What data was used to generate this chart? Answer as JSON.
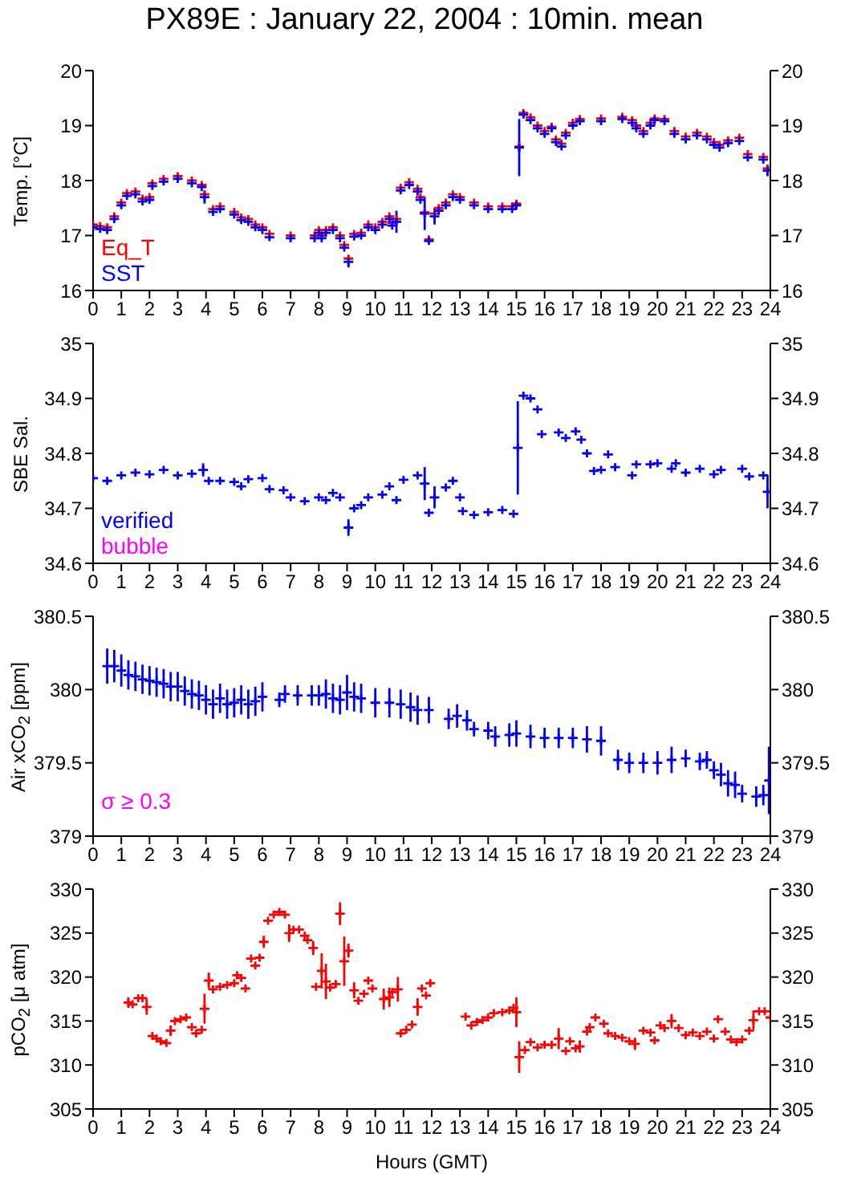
{
  "chart_data": [
    {
      "type": "scatter",
      "title": "PX89E : January 22, 2004 : 10min. mean",
      "ylabel": "Temp. [°C]",
      "marker": "cross",
      "legend": "bottom left",
      "xlim": [
        0,
        24
      ],
      "xticks": [
        0,
        1,
        2,
        3,
        4,
        5,
        6,
        7,
        8,
        9,
        10,
        11,
        12,
        13,
        14,
        15,
        16,
        17,
        18,
        19,
        20,
        21,
        22,
        23,
        24
      ],
      "ylim": [
        16,
        20
      ],
      "yticks": [
        16,
        17,
        18,
        19,
        20
      ],
      "y2lim": [
        16,
        20
      ],
      "y2ticks": [
        16,
        17,
        18,
        19,
        20
      ],
      "x": [
        0,
        0.25,
        0.5,
        0.75,
        1,
        1.2,
        1.5,
        1.75,
        2,
        2.1,
        2.5,
        3,
        3.5,
        3.85,
        3.95,
        4.25,
        4.5,
        5,
        5.25,
        5.5,
        5.75,
        6,
        6.25,
        7,
        7.85,
        8,
        8.1,
        8.25,
        8.5,
        8.75,
        8.9,
        9.05,
        9.25,
        9.5,
        9.75,
        10,
        10.25,
        10.5,
        10.6,
        10.75,
        10.9,
        11.2,
        11.5,
        11.6,
        11.75,
        11.9,
        12.1,
        12.25,
        12.5,
        12.75,
        13,
        13.5,
        14,
        14.5,
        14.85,
        15,
        15.1,
        15.25,
        15.5,
        15.75,
        16,
        16.25,
        16.4,
        16.6,
        16.75,
        17,
        17.25,
        18,
        18.75,
        19.1,
        19.25,
        19.5,
        19.75,
        19.9,
        20.25,
        20.6,
        21,
        21.4,
        21.75,
        22,
        22.2,
        22.5,
        22.9,
        23.2,
        23.75,
        23.9
      ],
      "series": [
        {
          "name": "Eq_T",
          "color": "#ff0000",
          "values": [
            17.2,
            17.17,
            17.15,
            17.35,
            17.6,
            17.77,
            17.8,
            17.67,
            17.7,
            17.95,
            18.03,
            18.08,
            18.0,
            17.92,
            17.75,
            17.48,
            17.53,
            17.43,
            17.33,
            17.3,
            17.2,
            17.15,
            17.03,
            17.0,
            17.0,
            17.1,
            17.0,
            17.1,
            17.15,
            17.0,
            16.83,
            16.58,
            17.03,
            17.05,
            17.2,
            17.15,
            17.25,
            17.35,
            17.23,
            17.3,
            17.87,
            17.97,
            17.85,
            17.7,
            17.42,
            16.93,
            17.4,
            17.5,
            17.6,
            17.75,
            17.7,
            17.6,
            17.53,
            17.53,
            17.53,
            17.58,
            18.62,
            19.23,
            19.15,
            19.0,
            18.9,
            18.98,
            18.75,
            18.67,
            18.87,
            19.05,
            19.12,
            19.13,
            19.16,
            19.1,
            19.0,
            18.9,
            19.05,
            19.13,
            19.12,
            18.9,
            18.8,
            18.87,
            18.8,
            18.7,
            18.65,
            18.73,
            18.78,
            18.48,
            18.43,
            18.22
          ]
        },
        {
          "name": "SST",
          "color": "#0000ff",
          "values": [
            17.15,
            17.12,
            17.1,
            17.3,
            17.55,
            17.72,
            17.75,
            17.62,
            17.65,
            17.9,
            17.98,
            18.03,
            17.95,
            17.88,
            17.7,
            17.43,
            17.48,
            17.38,
            17.28,
            17.25,
            17.15,
            17.1,
            16.97,
            16.95,
            16.95,
            17.05,
            16.95,
            17.05,
            17.1,
            16.95,
            16.78,
            16.52,
            16.98,
            17.0,
            17.15,
            17.1,
            17.2,
            17.3,
            17.18,
            17.25,
            17.82,
            17.92,
            17.8,
            17.65,
            17.4,
            16.9,
            17.35,
            17.45,
            17.55,
            17.7,
            17.65,
            17.55,
            17.48,
            17.48,
            17.48,
            17.55,
            18.6,
            19.2,
            19.1,
            18.95,
            18.85,
            18.95,
            18.7,
            18.62,
            18.82,
            19.0,
            19.08,
            19.08,
            19.12,
            19.05,
            18.95,
            18.85,
            19.0,
            19.1,
            19.08,
            18.85,
            18.75,
            18.82,
            18.75,
            18.65,
            18.6,
            18.68,
            18.72,
            18.42,
            18.38,
            18.18
          ],
          "errors": [
            null,
            null,
            null,
            null,
            null,
            null,
            null,
            null,
            null,
            null,
            null,
            null,
            null,
            null,
            0.12,
            null,
            null,
            null,
            null,
            null,
            null,
            null,
            null,
            null,
            null,
            null,
            null,
            null,
            null,
            null,
            null,
            0.1,
            null,
            null,
            null,
            null,
            null,
            null,
            null,
            0.2,
            null,
            null,
            null,
            null,
            0.3,
            null,
            0.15,
            null,
            null,
            null,
            null,
            null,
            null,
            null,
            null,
            null,
            0.52,
            null,
            null,
            null,
            null,
            null,
            null,
            null,
            null,
            null,
            null,
            null,
            null,
            null,
            null,
            null,
            null,
            null,
            null,
            null,
            null,
            null,
            null,
            null,
            null,
            null,
            null,
            null,
            null,
            0.1
          ]
        }
      ]
    },
    {
      "type": "scatter",
      "ylabel": "SBE Sal.",
      "marker": "cross",
      "legend": "bottom left",
      "xlim": [
        0,
        24
      ],
      "xticks": [
        0,
        1,
        2,
        3,
        4,
        5,
        6,
        7,
        8,
        9,
        10,
        11,
        12,
        13,
        14,
        15,
        16,
        17,
        18,
        19,
        20,
        21,
        22,
        23,
        24
      ],
      "ylim": [
        34.6,
        35
      ],
      "yticks": [
        34.6,
        34.7,
        34.8,
        34.9,
        35
      ],
      "y2lim": [
        34.6,
        35
      ],
      "y2ticks": [
        34.6,
        34.7,
        34.8,
        34.9,
        35
      ],
      "series": [
        {
          "name": "verified",
          "color": "#0000ff",
          "x": [
            0,
            0.5,
            1,
            1.5,
            2,
            2.5,
            3,
            3.5,
            3.9,
            4.1,
            4.5,
            5,
            5.25,
            5.5,
            6,
            6.25,
            6.75,
            7,
            7.5,
            8,
            8.25,
            8.5,
            8.75,
            9.05,
            9.25,
            9.5,
            9.75,
            10.25,
            10.5,
            10.75,
            11,
            11.5,
            11.75,
            11.9,
            12.1,
            12.5,
            12.75,
            13,
            13.1,
            13.5,
            14,
            14.5,
            14.9,
            15.05,
            15.25,
            15.5,
            15.75,
            15.9,
            16.5,
            16.75,
            17.1,
            17.3,
            17.5,
            17.75,
            18,
            18.25,
            18.5,
            19.1,
            19.25,
            19.75,
            20,
            20.5,
            20.65,
            21,
            21.5,
            22,
            22.25,
            23,
            23.25,
            23.75,
            23.9
          ],
          "values": [
            34.755,
            34.75,
            34.76,
            34.765,
            34.762,
            34.77,
            34.76,
            34.763,
            34.77,
            34.75,
            34.75,
            34.748,
            34.74,
            34.753,
            34.755,
            34.735,
            34.733,
            34.72,
            34.713,
            34.72,
            34.715,
            34.728,
            34.72,
            34.665,
            34.7,
            34.706,
            34.72,
            34.725,
            34.74,
            34.715,
            34.752,
            34.76,
            34.745,
            34.692,
            34.72,
            34.738,
            34.75,
            34.72,
            34.695,
            34.688,
            34.693,
            34.697,
            34.69,
            34.81,
            34.905,
            34.9,
            34.88,
            34.835,
            34.838,
            34.828,
            34.84,
            34.825,
            34.8,
            34.768,
            34.77,
            34.798,
            34.775,
            34.76,
            34.78,
            34.78,
            34.782,
            34.772,
            34.782,
            34.765,
            34.772,
            34.762,
            34.77,
            34.772,
            34.758,
            34.76,
            34.73
          ],
          "errors": [
            null,
            null,
            null,
            null,
            null,
            null,
            null,
            null,
            0.012,
            null,
            null,
            null,
            null,
            null,
            null,
            null,
            null,
            null,
            null,
            null,
            null,
            null,
            null,
            0.015,
            null,
            null,
            null,
            null,
            null,
            null,
            null,
            null,
            0.03,
            null,
            0.02,
            null,
            null,
            null,
            null,
            null,
            null,
            null,
            null,
            0.085,
            null,
            null,
            null,
            null,
            null,
            null,
            null,
            null,
            null,
            null,
            null,
            null,
            null,
            null,
            null,
            null,
            null,
            null,
            null,
            null,
            null,
            null,
            null,
            null,
            null,
            null,
            0.03
          ]
        },
        {
          "name": "bubble",
          "color": "#ff00ff"
        }
      ]
    },
    {
      "type": "scatter",
      "ylabel": "Air xCO$_{2}$ [ppm]",
      "marker": "cross",
      "annotations": [
        "σ ≥ 0.3"
      ],
      "xlim": [
        0,
        24
      ],
      "xticks": [
        0,
        1,
        2,
        3,
        4,
        5,
        6,
        7,
        8,
        9,
        10,
        11,
        12,
        13,
        14,
        15,
        16,
        17,
        18,
        19,
        20,
        21,
        22,
        23,
        24
      ],
      "ylim": [
        379,
        380.5
      ],
      "yticks": [
        379,
        379.5,
        380,
        380.5
      ],
      "y2lim": [
        379,
        380.5
      ],
      "y2ticks": [
        379,
        379.5,
        380,
        380.5
      ],
      "series": [
        {
          "color": "#0000ff",
          "x": [
            0.5,
            0.75,
            1,
            1.25,
            1.5,
            1.75,
            2,
            2.25,
            2.5,
            2.75,
            3,
            3.25,
            3.5,
            3.75,
            4,
            4.25,
            4.5,
            4.75,
            5,
            5.25,
            5.5,
            5.75,
            6,
            6.6,
            6.8,
            7.25,
            7.75,
            8,
            8.25,
            8.5,
            8.75,
            9,
            9.25,
            9.5,
            10,
            10.5,
            10.9,
            11.25,
            11.5,
            11.9,
            12.6,
            12.9,
            13.25,
            13.5,
            14,
            14.25,
            14.75,
            15,
            15.5,
            16,
            16.5,
            17,
            17.5,
            18,
            18.6,
            19,
            19.5,
            20,
            20.5,
            21,
            21.5,
            21.75,
            22,
            22.25,
            22.5,
            22.75,
            23,
            23.5,
            23.75,
            23.95
          ],
          "values": [
            380.16,
            380.16,
            380.13,
            380.1,
            380.09,
            380.07,
            380.06,
            380.05,
            380.04,
            380.02,
            380.02,
            379.99,
            379.97,
            379.96,
            379.93,
            379.9,
            379.94,
            379.9,
            379.91,
            379.93,
            379.9,
            379.92,
            379.95,
            379.93,
            379.97,
            379.96,
            379.96,
            379.96,
            379.97,
            379.94,
            379.93,
            379.98,
            379.95,
            379.94,
            379.91,
            379.91,
            379.9,
            379.88,
            379.86,
            379.86,
            379.8,
            379.82,
            379.79,
            379.73,
            379.72,
            379.68,
            379.69,
            379.7,
            379.68,
            379.67,
            379.67,
            379.67,
            379.66,
            379.65,
            379.52,
            379.5,
            379.5,
            379.5,
            379.52,
            379.53,
            379.51,
            379.52,
            379.45,
            379.42,
            379.36,
            379.35,
            379.29,
            379.27,
            379.28,
            379.38
          ],
          "errors": [
            0.12,
            0.11,
            0.11,
            0.1,
            0.1,
            0.1,
            0.1,
            0.1,
            0.1,
            0.1,
            0.1,
            0.1,
            0.1,
            0.1,
            0.1,
            0.1,
            0.1,
            0.1,
            0.1,
            0.1,
            0.1,
            0.1,
            0.1,
            0.05,
            0.06,
            0.07,
            0.07,
            0.07,
            0.1,
            0.1,
            0.1,
            0.12,
            0.1,
            0.1,
            0.1,
            0.1,
            0.1,
            0.1,
            0.1,
            0.09,
            0.07,
            0.08,
            0.07,
            0.05,
            0.06,
            0.07,
            0.08,
            0.09,
            0.08,
            0.07,
            0.07,
            0.07,
            0.09,
            0.1,
            0.07,
            0.07,
            0.07,
            0.08,
            0.09,
            0.06,
            0.06,
            0.06,
            0.06,
            0.08,
            0.09,
            0.09,
            0.06,
            0.07,
            0.07,
            0.23
          ]
        }
      ]
    },
    {
      "type": "scatter",
      "ylabel": "pCO$_{2}$ [μ atm]",
      "xlabel": "Hours (GMT)",
      "marker": "cross",
      "xlim": [
        0,
        24
      ],
      "xticks": [
        0,
        1,
        2,
        3,
        4,
        5,
        6,
        7,
        8,
        9,
        10,
        11,
        12,
        13,
        14,
        15,
        16,
        17,
        18,
        19,
        20,
        21,
        22,
        23,
        24
      ],
      "ylim": [
        305,
        330
      ],
      "yticks": [
        305,
        310,
        315,
        320,
        325,
        330
      ],
      "y2lim": [
        305,
        330
      ],
      "y2ticks": [
        305,
        310,
        315,
        320,
        325,
        330
      ],
      "series": [
        {
          "color": "#ff0000",
          "x": [
            1.25,
            1.4,
            1.6,
            1.75,
            1.9,
            2.1,
            2.25,
            2.4,
            2.6,
            2.75,
            2.9,
            3.1,
            3.3,
            3.5,
            3.65,
            3.85,
            3.95,
            4.1,
            4.25,
            4.5,
            4.75,
            5,
            5.1,
            5.25,
            5.4,
            5.6,
            5.75,
            5.9,
            6.05,
            6.2,
            6.4,
            6.6,
            6.8,
            6.95,
            7.1,
            7.3,
            7.5,
            7.6,
            7.8,
            7.9,
            8.1,
            8.25,
            8.4,
            8.6,
            8.75,
            8.9,
            9.05,
            9.25,
            9.4,
            9.6,
            9.75,
            9.9,
            10.3,
            10.5,
            10.6,
            10.8,
            10.9,
            11.1,
            11.3,
            11.5,
            11.65,
            11.8,
            11.95,
            13.2,
            13.4,
            13.6,
            13.8,
            14,
            14.2,
            14.5,
            14.75,
            14.9,
            15,
            15.1,
            15.3,
            15.5,
            15.75,
            16,
            16.25,
            16.5,
            16.75,
            16.9,
            17.1,
            17.25,
            17.5,
            17.6,
            17.8,
            18.1,
            18.25,
            18.5,
            18.75,
            19,
            19.2,
            19.5,
            19.75,
            19.9,
            20.1,
            20.25,
            20.5,
            20.75,
            21,
            21.25,
            21.5,
            21.75,
            22,
            22.15,
            22.4,
            22.6,
            22.8,
            23,
            23.25,
            23.4,
            23.6,
            23.8,
            24
          ],
          "values": [
            317.1,
            316.9,
            317.6,
            317.6,
            316.6,
            313.3,
            313,
            312.7,
            312.5,
            313.9,
            315,
            315.2,
            315.4,
            314.3,
            313.6,
            314,
            316.4,
            319.6,
            318.6,
            318.9,
            319.1,
            319.3,
            320.2,
            319.9,
            318.7,
            322.1,
            321.3,
            322.2,
            324,
            326.4,
            327.1,
            327.4,
            327.1,
            325,
            325.4,
            325.4,
            324.7,
            324.2,
            323.3,
            318.9,
            320.7,
            319.5,
            318.8,
            319.2,
            327.2,
            321.8,
            323,
            318.5,
            317.3,
            318.1,
            319.6,
            318.7,
            317.5,
            317.7,
            318.3,
            318.6,
            313.6,
            314,
            314.6,
            316.6,
            318.7,
            317.9,
            319.3,
            315.5,
            314.5,
            314.9,
            315.1,
            315.4,
            315.9,
            316,
            316.2,
            316.5,
            316,
            310.9,
            311.7,
            312.6,
            312,
            312.3,
            312.3,
            313,
            311.6,
            312.7,
            311.9,
            312.1,
            313.8,
            314.3,
            315.4,
            314.7,
            313.6,
            313.3,
            313.1,
            312.7,
            312.4,
            313.9,
            313.7,
            312.8,
            314.5,
            314.2,
            315,
            314.2,
            313.4,
            313.7,
            313.3,
            313.8,
            313,
            315.2,
            313.8,
            312.9,
            312.6,
            312.9,
            313.9,
            315.1,
            316.1,
            316.1,
            315.4
          ],
          "errors": [
            0.6,
            null,
            null,
            null,
            0.9,
            null,
            null,
            null,
            null,
            0.6,
            null,
            null,
            null,
            null,
            null,
            null,
            1.7,
            0.9,
            null,
            null,
            null,
            null,
            null,
            null,
            null,
            null,
            null,
            null,
            0.7,
            null,
            null,
            null,
            null,
            1,
            null,
            null,
            null,
            null,
            0.8,
            null,
            2,
            2,
            null,
            null,
            1.3,
            2.8,
            0.8,
            0.9,
            null,
            null,
            null,
            null,
            1.2,
            1.1,
            null,
            1.4,
            null,
            null,
            null,
            1,
            null,
            null,
            null,
            null,
            null,
            null,
            null,
            null,
            null,
            null,
            null,
            null,
            1.7,
            1.8,
            null,
            null,
            null,
            null,
            null,
            1.2,
            null,
            null,
            null,
            0.7,
            null,
            null,
            null,
            null,
            null,
            null,
            null,
            null,
            0.7,
            null,
            null,
            null,
            null,
            null,
            0.8,
            null,
            null,
            null,
            null,
            null,
            null,
            null,
            null,
            null,
            null,
            null,
            null,
            1.1,
            null,
            null,
            null
          ]
        }
      ]
    }
  ]
}
